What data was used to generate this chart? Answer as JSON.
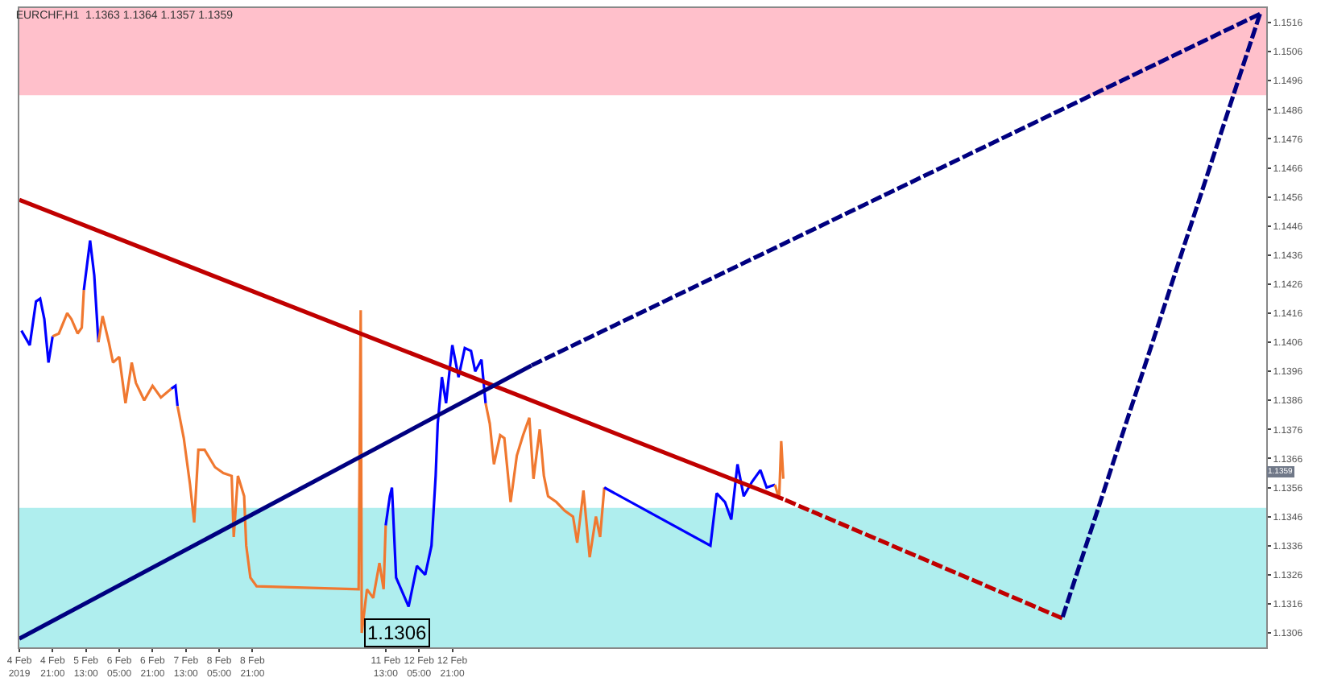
{
  "chart_data": {
    "type": "line",
    "title": "EURCHF,H1  1.1363 1.1364 1.1357 1.1359",
    "xlim": [
      "2019-02-04T05:00",
      "2019-03-01T04:00"
    ],
    "xticks": [
      {
        "value": "2019-02-04T05:00",
        "label": "4 Feb 2019"
      },
      {
        "value": "2019-02-04T21:00",
        "label": "4 Feb 21:00"
      },
      {
        "value": "2019-02-05T13:00",
        "label": "5 Feb 13:00"
      },
      {
        "value": "2019-02-06T05:00",
        "label": "6 Feb 05:00"
      },
      {
        "value": "2019-02-06T21:00",
        "label": "6 Feb 21:00"
      },
      {
        "value": "2019-02-07T13:00",
        "label": "7 Feb 13:00"
      },
      {
        "value": "2019-02-08T05:00",
        "label": "8 Feb 05:00"
      },
      {
        "value": "2019-02-08T21:00",
        "label": "8 Feb 21:00"
      },
      {
        "value": "2019-02-11T13:00",
        "label": "11 Feb 13:00"
      },
      {
        "value": "2019-02-12T05:00",
        "label": "12 Feb 05:00"
      },
      {
        "value": "2019-02-12T21:00",
        "label": "12 Feb 21:00"
      }
    ],
    "ylim": [
      1.1301,
      1.1521
    ],
    "yticks": [
      1.1306,
      1.1316,
      1.1326,
      1.1336,
      1.1346,
      1.1356,
      1.1366,
      1.1376,
      1.1386,
      1.1396,
      1.1406,
      1.1416,
      1.1426,
      1.1436,
      1.1446,
      1.1456,
      1.1466,
      1.1476,
      1.1486,
      1.1496,
      1.1506,
      1.1516
    ],
    "grid": false,
    "bands": [
      {
        "axis": "y",
        "from": 1.1491,
        "to": 1.1521,
        "color": "#ffc0cb"
      },
      {
        "axis": "y",
        "from": 1.1301,
        "to": 1.1349,
        "color": "#afeeee"
      }
    ],
    "series": [
      {
        "color": "#0000ff",
        "x": [
          "2019-02-04T06:00",
          "2019-02-04T10:00",
          "2019-02-04T13:00",
          "2019-02-04T15:00",
          "2019-02-04T17:00",
          "2019-02-04T19:00",
          "2019-02-04T21:00"
        ],
        "values": [
          1.141,
          1.1405,
          1.142,
          1.1421,
          1.1414,
          1.1399,
          1.1408
        ]
      },
      {
        "color": "#f07830",
        "x": [
          "2019-02-04T21:00",
          "2019-02-05T00:00",
          "2019-02-05T04:00",
          "2019-02-05T06:00",
          "2019-02-05T09:00",
          "2019-02-05T11:00",
          "2019-02-05T12:00"
        ],
        "values": [
          1.1408,
          1.1409,
          1.1416,
          1.1414,
          1.1409,
          1.1411,
          1.1424
        ]
      },
      {
        "color": "#0000ff",
        "x": [
          "2019-02-05T12:00",
          "2019-02-05T15:00",
          "2019-02-05T17:00",
          "2019-02-05T19:00"
        ],
        "values": [
          1.1424,
          1.1441,
          1.1429,
          1.1406
        ]
      },
      {
        "color": "#f07830",
        "x": [
          "2019-02-05T19:00",
          "2019-02-05T21:00",
          "2019-02-06T00:00",
          "2019-02-06T02:00",
          "2019-02-06T05:00",
          "2019-02-06T08:00",
          "2019-02-06T11:00",
          "2019-02-06T13:00",
          "2019-02-06T17:00",
          "2019-02-06T21:00",
          "2019-02-07T01:00",
          "2019-02-07T06:00"
        ],
        "values": [
          1.1406,
          1.1415,
          1.1406,
          1.1399,
          1.1401,
          1.1385,
          1.1399,
          1.1392,
          1.1386,
          1.1391,
          1.1387,
          1.139
        ]
      },
      {
        "color": "#0000ff",
        "x": [
          "2019-02-07T06:00",
          "2019-02-07T08:00",
          "2019-02-07T09:00"
        ],
        "values": [
          1.139,
          1.1391,
          1.1384
        ]
      },
      {
        "color": "#f07830",
        "x": [
          "2019-02-07T09:00",
          "2019-02-07T12:00",
          "2019-02-07T15:00",
          "2019-02-07T17:00",
          "2019-02-07T19:00",
          "2019-02-07T22:00",
          "2019-02-08T03:00",
          "2019-02-08T07:00",
          "2019-02-08T11:00",
          "2019-02-08T12:00",
          "2019-02-08T14:00",
          "2019-02-08T17:00",
          "2019-02-08T18:00",
          "2019-02-08T20:00",
          "2019-02-08T23:00",
          "2019-02-11T00:00",
          "2019-02-11T01:00",
          "2019-02-11T01:30",
          "2019-02-11T04:00",
          "2019-02-11T07:00",
          "2019-02-11T10:00",
          "2019-02-11T12:00",
          "2019-02-11T13:00"
        ],
        "values": [
          1.1384,
          1.1373,
          1.1357,
          1.1344,
          1.1369,
          1.1369,
          1.1363,
          1.1361,
          1.136,
          1.1339,
          1.136,
          1.1353,
          1.1336,
          1.1325,
          1.1322,
          1.1321,
          1.1417,
          1.1306,
          1.1321,
          1.1318,
          1.133,
          1.1321,
          1.1343
        ]
      },
      {
        "color": "#0000ff",
        "x": [
          "2019-02-11T13:00",
          "2019-02-11T15:00",
          "2019-02-11T16:00",
          "2019-02-11T18:00",
          "2019-02-11T21:00",
          "2019-02-12T00:00",
          "2019-02-12T04:00",
          "2019-02-12T08:00",
          "2019-02-12T11:00",
          "2019-02-12T13:00",
          "2019-02-12T14:00",
          "2019-02-12T16:00",
          "2019-02-12T18:00",
          "2019-02-12T21:00",
          "2019-02-13T00:00",
          "2019-02-13T03:00",
          "2019-02-13T06:00",
          "2019-02-13T08:00",
          "2019-02-13T11:00",
          "2019-02-13T13:00"
        ],
        "values": [
          1.1343,
          1.1353,
          1.1356,
          1.1325,
          1.132,
          1.1315,
          1.1329,
          1.1326,
          1.1336,
          1.136,
          1.1378,
          1.1394,
          1.1385,
          1.1405,
          1.1394,
          1.1404,
          1.1403,
          1.1396,
          1.14,
          1.1385
        ]
      },
      {
        "color": "#f07830",
        "x": [
          "2019-02-13T13:00",
          "2019-02-13T15:00",
          "2019-02-13T17:00",
          "2019-02-13T20:00",
          "2019-02-13T22:00",
          "2019-02-14T01:00",
          "2019-02-14T04:00",
          "2019-02-14T07:00",
          "2019-02-14T10:00",
          "2019-02-14T12:00",
          "2019-02-14T15:00",
          "2019-02-14T17:00",
          "2019-02-14T19:00",
          "2019-02-14T23:00",
          "2019-02-15T03:00",
          "2019-02-15T07:00",
          "2019-02-15T09:00",
          "2019-02-15T12:00",
          "2019-02-15T15:00",
          "2019-02-15T18:00",
          "2019-02-15T20:00",
          "2019-02-15T22:00"
        ],
        "values": [
          1.1385,
          1.1378,
          1.1364,
          1.1374,
          1.1373,
          1.1351,
          1.1367,
          1.1374,
          1.138,
          1.1359,
          1.1376,
          1.136,
          1.1353,
          1.1351,
          1.1348,
          1.1346,
          1.1337,
          1.1355,
          1.1332,
          1.1346,
          1.1339,
          1.1356
        ]
      },
      {
        "color": "#0000ff",
        "x": [
          "2019-02-15T22:00",
          "2019-02-18T01:00",
          "2019-02-18T04:00",
          "2019-02-18T08:00",
          "2019-02-18T11:00",
          "2019-02-18T14:00",
          "2019-02-18T17:00",
          "2019-02-18T21:00",
          "2019-02-19T01:00",
          "2019-02-19T04:00",
          "2019-02-19T08:00"
        ],
        "values": [
          1.1356,
          1.1336,
          1.1354,
          1.1351,
          1.1345,
          1.1364,
          1.1353,
          1.1358,
          1.1362,
          1.1356,
          1.1357
        ]
      },
      {
        "color": "#f07830",
        "x": [
          "2019-02-19T08:00",
          "2019-02-19T10:00",
          "2019-02-19T11:00",
          "2019-02-19T12:00"
        ],
        "values": [
          1.1357,
          1.1352,
          1.1372,
          1.1359
        ]
      },
      {
        "color": "#c00000",
        "x": [
          "2019-02-04T05:00",
          "2019-02-19T12:00"
        ],
        "values": [
          1.1455,
          1.1352
        ],
        "line_style": "solid"
      },
      {
        "color": "#c00000",
        "x": [
          "2019-02-19T12:00",
          "2019-02-25T02:00"
        ],
        "values": [
          1.1352,
          1.1311
        ],
        "line_style": "dashed"
      },
      {
        "color": "#000080",
        "x": [
          "2019-02-04T05:00",
          "2019-02-14T11:00"
        ],
        "values": [
          1.1304,
          1.1398
        ],
        "line_style": "solid"
      },
      {
        "color": "#000080",
        "x": [
          "2019-02-14T11:00",
          "2019-03-01T01:00"
        ],
        "values": [
          1.1398,
          1.1519
        ],
        "line_style": "dashed"
      },
      {
        "color": "#000080",
        "x": [
          "2019-02-25T02:00",
          "2019-03-01T01:00"
        ],
        "values": [
          1.1311,
          1.1519
        ],
        "line_style": "dashed"
      }
    ],
    "annotations": [
      {
        "text": "1.1306",
        "x": "2019-02-11T01:30",
        "y": 1.1306
      },
      "1.1359"
    ]
  }
}
